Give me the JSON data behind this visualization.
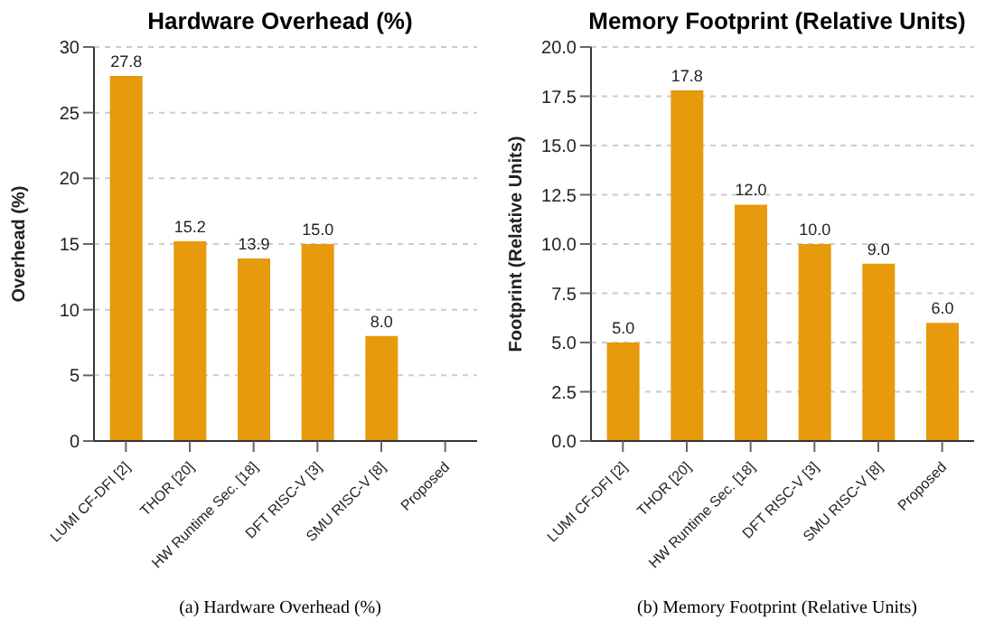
{
  "chart_data": [
    {
      "type": "bar",
      "title": "Hardware Overhead (%)",
      "ylabel": "Overhead (%)",
      "categories": [
        "LUMI CF-DFI [2]",
        "THOR [20]",
        "HW Runtime Sec. [18]",
        "DFT RISC-V [3]",
        "SMU RISC-V [8]",
        "Proposed"
      ],
      "values": [
        27.8,
        15.2,
        13.9,
        15.0,
        8.0,
        null
      ],
      "value_labels": [
        "27.8",
        "15.2",
        "13.9",
        "15.0",
        "8.0",
        null
      ],
      "color": "#e69a0c",
      "ylim": [
        0,
        30
      ],
      "yticks": [
        0,
        5,
        10,
        15,
        20,
        25,
        30
      ],
      "grid": "y",
      "annotations": [
        "(a)  Hardware Overhead (%)"
      ]
    },
    {
      "type": "bar",
      "title": "Memory Footprint (Relative Units)",
      "ylabel": "Footprint (Relative Units)",
      "categories": [
        "LUMI CF-DFI [2]",
        "THOR [20]",
        "HW Runtime Sec. [18]",
        "DFT RISC-V [3]",
        "SMU RISC-V [8]",
        "Proposed"
      ],
      "values": [
        5.0,
        17.8,
        12.0,
        10.0,
        9.0,
        6.0
      ],
      "value_labels": [
        "5.0",
        "17.8",
        "12.0",
        "10.0",
        "9.0",
        "6.0"
      ],
      "color": "#e69a0c",
      "ylim": [
        0,
        20
      ],
      "yticks": [
        {
          "value": 0,
          "label": "0.0"
        },
        {
          "value": 2.5,
          "label": "2.5"
        },
        {
          "value": 5,
          "label": "5.0"
        },
        {
          "value": 7.5,
          "label": "7.5"
        },
        {
          "value": 10,
          "label": "10.0"
        },
        {
          "value": 12.5,
          "label": "12.5"
        },
        {
          "value": 15,
          "label": "15.0"
        },
        {
          "value": 17.5,
          "label": "17.5"
        },
        {
          "value": 20,
          "label": "20.0"
        }
      ],
      "grid": "y",
      "annotations": [
        "(b)  Memory Footprint (Relative Units)"
      ]
    }
  ]
}
